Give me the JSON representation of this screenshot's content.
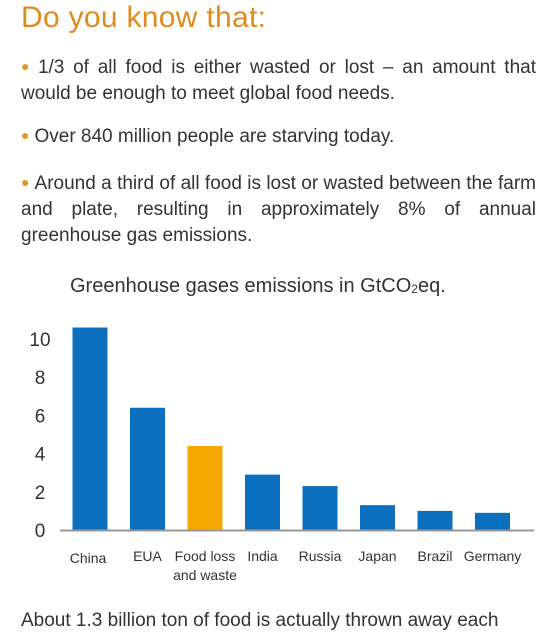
{
  "heading": "Do you know that:",
  "facts": [
    "1/3 of all food is either wasted or lost – an amount that would be enough to meet global food needs.",
    "Over 840 million people are starving today.",
    "Around a third of all food is lost or wasted between the farm and plate, resulting in approximately 8% of annual greenhouse gas emissions."
  ],
  "chart_title": {
    "prefix": "Greenhouse gases emissions in GtCO",
    "subscript": "2",
    "suffix": "eq."
  },
  "footer_text": "About 1.3 billion ton of food is actually thrown away each",
  "colors": {
    "heading": "#E08A1E",
    "bullet": "#E0951E",
    "bar_default": "#0B6FBE",
    "bar_highlight": "#F6A800",
    "axis": "#999999",
    "text": "#333333"
  },
  "chart_data": {
    "type": "bar",
    "title": "Greenhouse gases emissions in GtCO2eq.",
    "categories": [
      "China",
      "EUA",
      "Food loss and waste",
      "India",
      "Russia",
      "Japan",
      "Brazil",
      "Germany"
    ],
    "category_labels": [
      [
        "China"
      ],
      [
        "EUA"
      ],
      [
        "Food loss",
        "and waste"
      ],
      [
        "India"
      ],
      [
        "Russia"
      ],
      [
        "Japan"
      ],
      [
        "Brazil"
      ],
      [
        "Germany"
      ]
    ],
    "values": [
      10.6,
      6.4,
      4.4,
      2.9,
      2.3,
      1.3,
      1.0,
      0.9
    ],
    "highlight": "Food loss and waste",
    "yticks": [
      0,
      2,
      4,
      6,
      8,
      10
    ],
    "ylim": [
      0,
      11
    ],
    "xlabel": "",
    "ylabel": "",
    "grid": false,
    "legend": "none"
  }
}
